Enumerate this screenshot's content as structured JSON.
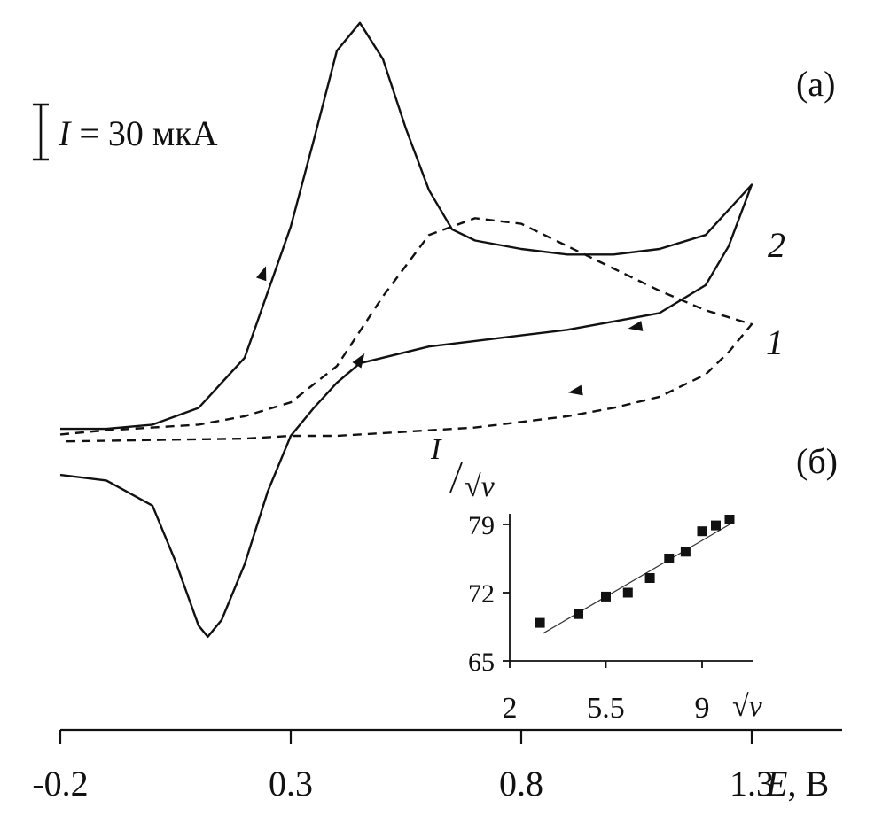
{
  "chart_data": [
    {
      "id": "a",
      "type": "line",
      "panel_label": "(a)",
      "xlabel_var": "E",
      "xlabel_unit": ", В",
      "xlim": [
        -0.2,
        1.5
      ],
      "xticks": [
        -0.2,
        0.3,
        0.8,
        1.3
      ],
      "xtick_labels": [
        "-0.2",
        "0.3",
        "0.8",
        "1.3"
      ],
      "scale_bar": {
        "var": "I",
        "text": " = 30 мкА",
        "value_uA": 30
      },
      "y_units": "uA (relative, from scale bar)",
      "series": [
        {
          "label": "1",
          "style": "dashed",
          "forward": [
            [
              -0.2,
              0.5
            ],
            [
              -0.1,
              2
            ],
            [
              0.0,
              3
            ],
            [
              0.1,
              4
            ],
            [
              0.2,
              7
            ],
            [
              0.3,
              12
            ],
            [
              0.4,
              25
            ],
            [
              0.5,
              50
            ],
            [
              0.6,
              72
            ],
            [
              0.7,
              78
            ],
            [
              0.8,
              76
            ],
            [
              0.9,
              68
            ],
            [
              1.0,
              60
            ],
            [
              1.1,
              52
            ],
            [
              1.2,
              45
            ],
            [
              1.3,
              40
            ]
          ],
          "reverse": [
            [
              1.3,
              40
            ],
            [
              1.25,
              30
            ],
            [
              1.2,
              22
            ],
            [
              1.1,
              14
            ],
            [
              1.0,
              10
            ],
            [
              0.9,
              7
            ],
            [
              0.8,
              5
            ],
            [
              0.7,
              3
            ],
            [
              0.6,
              2
            ],
            [
              0.5,
              1
            ],
            [
              0.4,
              0
            ],
            [
              0.3,
              0
            ],
            [
              0.2,
              -1
            ],
            [
              0.0,
              -1.5
            ],
            [
              -0.2,
              -2
            ]
          ],
          "arrows": [
            [
              0.45,
              27
            ],
            [
              0.92,
              16
            ]
          ]
        },
        {
          "label": "2",
          "style": "solid",
          "forward": [
            [
              -0.2,
              2.5
            ],
            [
              -0.1,
              2.5
            ],
            [
              0.0,
              4
            ],
            [
              0.1,
              10
            ],
            [
              0.2,
              28
            ],
            [
              0.3,
              75
            ],
            [
              0.35,
              106
            ],
            [
              0.4,
              138
            ],
            [
              0.45,
              148
            ],
            [
              0.5,
              135
            ],
            [
              0.55,
              110
            ],
            [
              0.6,
              88
            ],
            [
              0.65,
              74
            ],
            [
              0.7,
              70
            ],
            [
              0.8,
              67
            ],
            [
              0.9,
              65
            ],
            [
              1.0,
              65
            ],
            [
              1.1,
              67
            ],
            [
              1.2,
              72
            ],
            [
              1.3,
              90
            ]
          ],
          "reverse": [
            [
              1.3,
              90
            ],
            [
              1.25,
              68
            ],
            [
              1.2,
              54
            ],
            [
              1.1,
              44
            ],
            [
              1.0,
              41
            ],
            [
              0.9,
              38
            ],
            [
              0.8,
              36
            ],
            [
              0.7,
              34
            ],
            [
              0.6,
              32
            ],
            [
              0.5,
              28
            ],
            [
              0.45,
              26
            ],
            [
              0.4,
              19
            ],
            [
              0.35,
              10
            ],
            [
              0.3,
              0
            ],
            [
              0.25,
              -20
            ],
            [
              0.2,
              -46
            ],
            [
              0.15,
              -66
            ],
            [
              0.12,
              -72
            ],
            [
              0.1,
              -68
            ],
            [
              0.05,
              -45
            ],
            [
              0.0,
              -25
            ],
            [
              -0.1,
              -16
            ],
            [
              -0.2,
              -14
            ]
          ],
          "arrows": [
            [
              0.24,
              58
            ],
            [
              1.05,
              39
            ]
          ]
        }
      ]
    },
    {
      "id": "b",
      "type": "scatter",
      "panel_label": "(б)",
      "ylabel_var": "I",
      "ylabel_den": "√v",
      "xlabel": "√v",
      "xlim": [
        2,
        10.5
      ],
      "ylim": [
        65,
        80
      ],
      "xticks": [
        2,
        5.5,
        9
      ],
      "xtick_labels": [
        "2",
        "5.5",
        "9"
      ],
      "yticks": [
        65,
        72,
        79
      ],
      "ytick_labels": [
        "65",
        "72",
        "79"
      ],
      "points": [
        [
          3.1,
          68.9
        ],
        [
          4.5,
          69.8
        ],
        [
          5.5,
          71.6
        ],
        [
          6.3,
          72.0
        ],
        [
          7.1,
          73.5
        ],
        [
          7.8,
          75.5
        ],
        [
          8.4,
          76.2
        ],
        [
          9.0,
          78.3
        ],
        [
          9.5,
          78.9
        ],
        [
          10.0,
          79.5
        ]
      ],
      "fit_line": [
        [
          3.2,
          67.8
        ],
        [
          10.0,
          79.0
        ]
      ]
    }
  ]
}
